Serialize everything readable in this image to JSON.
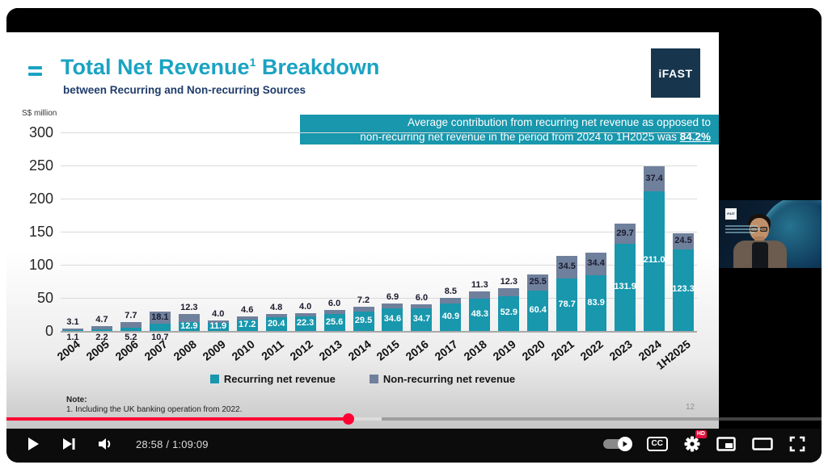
{
  "slide": {
    "title": {
      "main": "Total Net Revenue",
      "superscript": "1",
      "suffix": " Breakdown"
    },
    "subtitle": "between Recurring and Non-recurring Sources",
    "logo_text": "iFAST",
    "axis_unit": "S$ million",
    "callout": {
      "line1": "Average contribution from recurring net revenue as opposed to",
      "line2": "non-recurring net revenue in the period from 2024 to 1H2025 was ",
      "highlight": "84.2%"
    },
    "note": {
      "heading": "Note:",
      "line": "1. Including the UK banking operation from 2022."
    },
    "page_number": "12"
  },
  "chart_data": {
    "type": "bar",
    "stacked": true,
    "title": "Total Net Revenue Breakdown between Recurring and Non-recurring Sources",
    "ylabel": "S$ million",
    "ylim": [
      0,
      300
    ],
    "yticks": [
      0,
      50,
      100,
      150,
      200,
      250,
      300
    ],
    "grid": true,
    "legend_position": "bottom",
    "categories": [
      "2004",
      "2005",
      "2006",
      "2007",
      "2008",
      "2009",
      "2010",
      "2011",
      "2012",
      "2013",
      "2014",
      "2015",
      "2016",
      "2017",
      "2018",
      "2019",
      "2020",
      "2021",
      "2022",
      "2023",
      "2024",
      "1H2025"
    ],
    "series": [
      {
        "name": "Recurring net revenue",
        "color": "#1897ad",
        "values": [
          1.1,
          2.2,
          5.2,
          10.7,
          12.9,
          11.9,
          17.2,
          20.4,
          22.3,
          25.6,
          29.5,
          34.6,
          34.7,
          40.9,
          48.3,
          52.9,
          60.4,
          78.7,
          83.9,
          131.9,
          211.0,
          123.3
        ]
      },
      {
        "name": "Non-recurring net revenue",
        "color": "#6f809c",
        "values": [
          3.1,
          4.7,
          7.7,
          18.1,
          12.3,
          4.0,
          4.6,
          4.8,
          4.0,
          6.0,
          7.2,
          6.9,
          6.0,
          8.5,
          11.3,
          12.3,
          25.5,
          34.5,
          34.4,
          29.7,
          37.4,
          24.5
        ]
      }
    ]
  },
  "cam": {
    "logo_text": "iFAST"
  },
  "player": {
    "time_display": "28:58 / 1:09:09",
    "cc_label": "CC",
    "hd_label": "HD",
    "progress": {
      "played_percent": 42,
      "buffered_percent": 46
    }
  }
}
